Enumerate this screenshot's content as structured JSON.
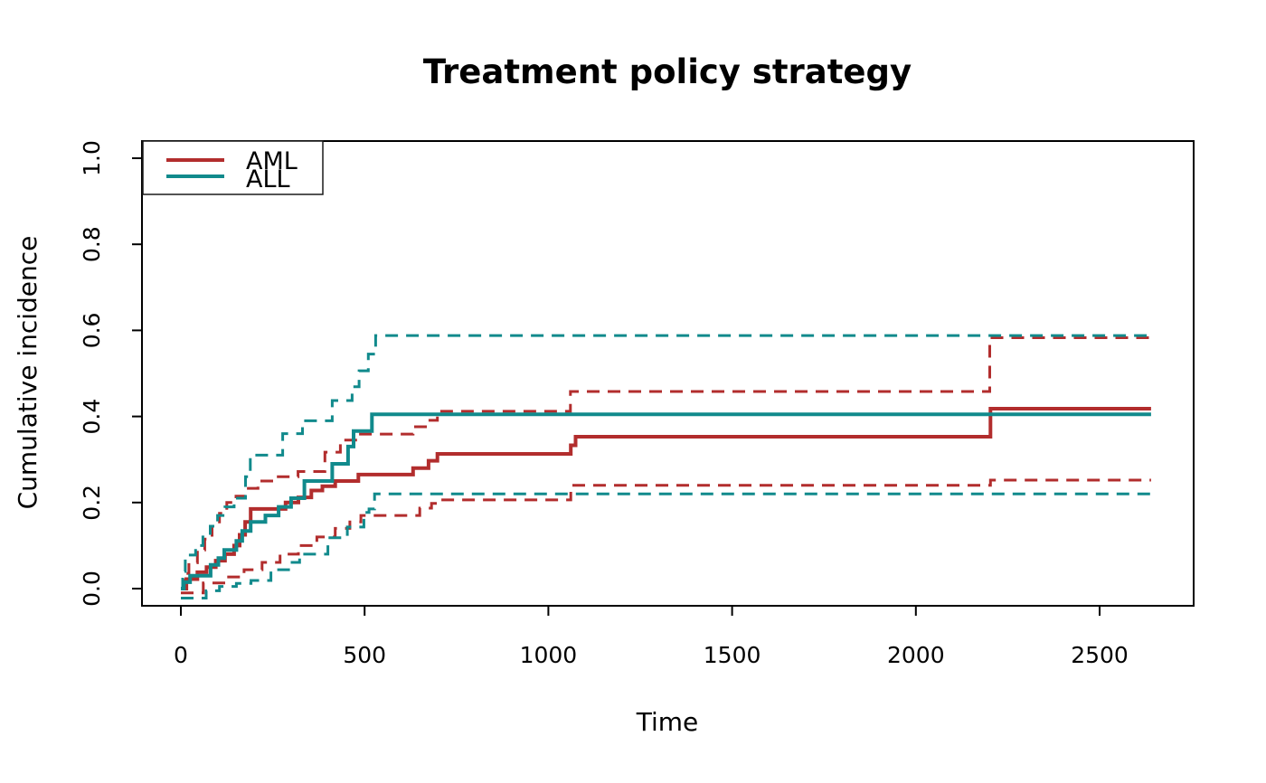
{
  "figure": {
    "title": "Treatment policy strategy",
    "x_axis": {
      "label": "Time"
    },
    "y_axis": {
      "label": "Cumulative incidence"
    },
    "legend": {
      "items": [
        {
          "label": "AML",
          "color": "#B22D2D"
        },
        {
          "label": "ALL",
          "color": "#118A8C"
        }
      ]
    }
  },
  "chart_data": {
    "type": "line",
    "subtype": "step",
    "title": "Treatment policy strategy",
    "xlabel": "Time",
    "ylabel": "Cumulative incidence",
    "xlim": [
      -106,
      2746
    ],
    "ylim": [
      -0.04,
      1.04
    ],
    "x_ticks": [
      0,
      500,
      1000,
      1500,
      2000,
      2500
    ],
    "y_ticks": [
      0,
      0.2,
      0.4,
      0.6,
      0.8,
      1.0
    ],
    "grid": false,
    "legend_position": "topleft",
    "end_time": 2640,
    "series": [
      {
        "id": "aml-lower-ci",
        "name": "AML lower 95% CI",
        "group": "AML",
        "color": "#B22D2D",
        "style": "dashed",
        "points": [
          [
            0,
            -0.01
          ],
          [
            61,
            0.013
          ],
          [
            123,
            0.027
          ],
          [
            172,
            0.044
          ],
          [
            221,
            0.061
          ],
          [
            270,
            0.08
          ],
          [
            320,
            0.1
          ],
          [
            370,
            0.12
          ],
          [
            420,
            0.14
          ],
          [
            460,
            0.155
          ],
          [
            490,
            0.17
          ],
          [
            650,
            0.187
          ],
          [
            682,
            0.198
          ],
          [
            698,
            0.206
          ],
          [
            1061,
            0.24
          ],
          [
            2203,
            0.252
          ]
        ]
      },
      {
        "id": "aml-upper-ci",
        "name": "AML upper 95% CI",
        "group": "AML",
        "color": "#B22D2D",
        "style": "dashed",
        "points": [
          [
            0,
            0
          ],
          [
            8,
            0.035
          ],
          [
            22,
            0.06
          ],
          [
            45,
            0.09
          ],
          [
            65,
            0.115
          ],
          [
            85,
            0.145
          ],
          [
            105,
            0.175
          ],
          [
            125,
            0.2
          ],
          [
            150,
            0.215
          ],
          [
            176,
            0.233
          ],
          [
            210,
            0.25
          ],
          [
            260,
            0.26
          ],
          [
            319,
            0.272
          ],
          [
            392,
            0.317
          ],
          [
            434,
            0.345
          ],
          [
            483,
            0.359
          ],
          [
            632,
            0.376
          ],
          [
            674,
            0.391
          ],
          [
            698,
            0.412
          ],
          [
            1060,
            0.458
          ],
          [
            2201,
            0.583
          ]
        ]
      },
      {
        "id": "all-lower-ci",
        "name": "ALL lower 95% CI",
        "group": "ALL",
        "color": "#118A8C",
        "style": "dashed",
        "points": [
          [
            0,
            -0.022
          ],
          [
            69,
            -0.005
          ],
          [
            105,
            0.005
          ],
          [
            151,
            0.012
          ],
          [
            191,
            0.019
          ],
          [
            245,
            0.044
          ],
          [
            299,
            0.061
          ],
          [
            323,
            0.08
          ],
          [
            400,
            0.118
          ],
          [
            453,
            0.143
          ],
          [
            498,
            0.177
          ],
          [
            512,
            0.185
          ],
          [
            527,
            0.22
          ]
        ]
      },
      {
        "id": "all-upper-ci",
        "name": "ALL upper 95% CI",
        "group": "ALL",
        "color": "#118A8C",
        "style": "dashed",
        "points": [
          [
            0,
            0
          ],
          [
            5,
            0.04
          ],
          [
            12,
            0.078
          ],
          [
            40,
            0.1
          ],
          [
            60,
            0.12
          ],
          [
            80,
            0.145
          ],
          [
            100,
            0.17
          ],
          [
            120,
            0.19
          ],
          [
            145,
            0.21
          ],
          [
            176,
            0.26
          ],
          [
            189,
            0.31
          ],
          [
            277,
            0.36
          ],
          [
            331,
            0.39
          ],
          [
            412,
            0.437
          ],
          [
            466,
            0.469
          ],
          [
            485,
            0.506
          ],
          [
            510,
            0.545
          ],
          [
            530,
            0.588
          ]
        ]
      },
      {
        "id": "aml-estimate",
        "name": "AML",
        "group": "AML",
        "color": "#B22D2D",
        "style": "solid",
        "points": [
          [
            0,
            0
          ],
          [
            15,
            0.022
          ],
          [
            45,
            0.038
          ],
          [
            70,
            0.05
          ],
          [
            95,
            0.065
          ],
          [
            120,
            0.08
          ],
          [
            145,
            0.1
          ],
          [
            160,
            0.125
          ],
          [
            175,
            0.155
          ],
          [
            190,
            0.185
          ],
          [
            285,
            0.2
          ],
          [
            320,
            0.212
          ],
          [
            355,
            0.228
          ],
          [
            385,
            0.238
          ],
          [
            420,
            0.25
          ],
          [
            483,
            0.265
          ],
          [
            632,
            0.28
          ],
          [
            674,
            0.297
          ],
          [
            698,
            0.313
          ],
          [
            1061,
            0.333
          ],
          [
            1074,
            0.353
          ],
          [
            2203,
            0.418
          ]
        ]
      },
      {
        "id": "all-estimate",
        "name": "ALL",
        "group": "ALL",
        "color": "#118A8C",
        "style": "solid",
        "points": [
          [
            0,
            0
          ],
          [
            8,
            0.015
          ],
          [
            25,
            0.03
          ],
          [
            81,
            0.055
          ],
          [
            102,
            0.071
          ],
          [
            118,
            0.09
          ],
          [
            151,
            0.111
          ],
          [
            167,
            0.134
          ],
          [
            190,
            0.155
          ],
          [
            230,
            0.17
          ],
          [
            266,
            0.19
          ],
          [
            300,
            0.21
          ],
          [
            336,
            0.25
          ],
          [
            412,
            0.29
          ],
          [
            455,
            0.33
          ],
          [
            470,
            0.366
          ],
          [
            520,
            0.405
          ]
        ]
      }
    ]
  }
}
